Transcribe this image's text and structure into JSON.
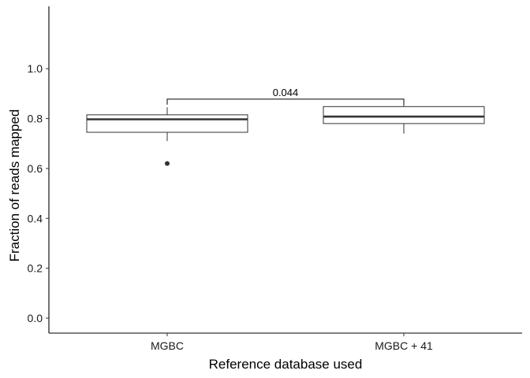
{
  "chart_data": {
    "type": "boxplot",
    "xlabel": "Reference database used",
    "ylabel": "Fraction of reads mapped",
    "ylim": [
      -0.06,
      1.25
    ],
    "yticks": [
      0.0,
      0.2,
      0.4,
      0.6,
      0.8,
      1.0
    ],
    "ytick_labels": [
      "0.0",
      "0.2",
      "0.4",
      "0.6",
      "0.8",
      "1.0"
    ],
    "categories": [
      "MGBC",
      "MGBC + 41"
    ],
    "boxes": [
      {
        "category": "MGBC",
        "whisker_low": 0.71,
        "q1": 0.745,
        "median": 0.797,
        "q3": 0.815,
        "whisker_high": 0.845,
        "outliers": [
          0.62
        ]
      },
      {
        "category": "MGBC + 41",
        "whisker_low": 0.74,
        "q1": 0.78,
        "median": 0.808,
        "q3": 0.848,
        "whisker_high": 0.86,
        "outliers": []
      }
    ],
    "comparison": {
      "groups": [
        "MGBC",
        "MGBC + 41"
      ],
      "y": 0.878,
      "label": "0.044"
    },
    "grid": false,
    "legend": "none"
  }
}
